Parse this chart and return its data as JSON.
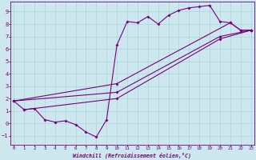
{
  "xlabel": "Windchill (Refroidissement éolien,°C)",
  "bg_color": "#cce8ee",
  "line_color": "#780078",
  "grid_color": "#aad4dc",
  "xlim": [
    -0.3,
    23.3
  ],
  "ylim": [
    -1.7,
    9.8
  ],
  "xticks": [
    0,
    1,
    2,
    3,
    4,
    5,
    6,
    7,
    8,
    9,
    10,
    11,
    12,
    13,
    14,
    15,
    16,
    17,
    18,
    19,
    20,
    21,
    22,
    23
  ],
  "yticks": [
    -1,
    0,
    1,
    2,
    3,
    4,
    5,
    6,
    7,
    8,
    9
  ],
  "series_zigzag": [
    [
      0,
      1.8
    ],
    [
      1,
      1.1
    ],
    [
      2,
      1.2
    ],
    [
      3,
      0.3
    ],
    [
      4,
      0.1
    ],
    [
      5,
      0.2
    ],
    [
      6,
      -0.1
    ],
    [
      7,
      -0.7
    ],
    [
      8,
      -1.1
    ],
    [
      9,
      0.3
    ],
    [
      10,
      6.3
    ],
    [
      11,
      8.2
    ],
    [
      12,
      8.1
    ],
    [
      13,
      8.6
    ],
    [
      14,
      8.0
    ],
    [
      15,
      8.7
    ],
    [
      16,
      9.1
    ],
    [
      17,
      9.3
    ],
    [
      18,
      9.4
    ],
    [
      19,
      9.5
    ],
    [
      20,
      8.2
    ],
    [
      21,
      8.1
    ],
    [
      22,
      7.5
    ],
    [
      23,
      7.5
    ]
  ],
  "series_line1": [
    [
      0,
      1.8
    ],
    [
      10,
      3.2
    ],
    [
      21,
      8.1
    ],
    [
      22,
      7.5
    ],
    [
      23,
      7.5
    ]
  ],
  "series_line2": [
    [
      0,
      1.8
    ],
    [
      10,
      2.5
    ],
    [
      20,
      7.0
    ],
    [
      23,
      7.5
    ]
  ],
  "series_line3": [
    [
      1,
      1.1
    ],
    [
      10,
      2.0
    ],
    [
      20,
      6.8
    ],
    [
      23,
      7.5
    ]
  ]
}
